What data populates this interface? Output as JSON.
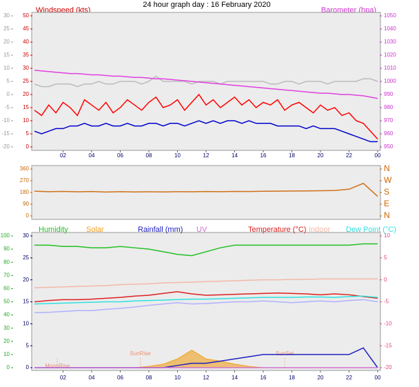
{
  "chart_data": [
    {
      "type": "line",
      "title": "24 hour graph day : 16 February 2020",
      "ylabel": "Windspeed (kts)",
      "y2label": "Barometer (hpa)",
      "xlim": [
        0,
        24
      ],
      "xticks": [
        {
          "value": 2,
          "label": "02"
        },
        {
          "value": 4,
          "label": "04"
        },
        {
          "value": 6,
          "label": "06"
        },
        {
          "value": 8,
          "label": "08"
        },
        10,
        12,
        14,
        16,
        18,
        20,
        22,
        {
          "value": 24,
          "label": "00"
        }
      ],
      "ylim": [
        0,
        50
      ],
      "yticks": [
        0,
        5,
        10,
        15,
        20,
        25,
        30,
        35,
        40,
        45,
        50
      ],
      "y3lim": [
        -20,
        30
      ],
      "y3ticks": [
        -20,
        -15,
        -10,
        -5,
        0,
        5,
        10,
        15,
        20,
        25,
        30
      ],
      "y2lim": [
        950,
        1050
      ],
      "y2ticks": [
        950,
        960,
        970,
        980,
        990,
        1000,
        1010,
        1020,
        1030,
        1040,
        1050
      ],
      "x": [
        0,
        0.5,
        1,
        1.5,
        2,
        2.5,
        3,
        3.5,
        4,
        4.5,
        5,
        5.5,
        6,
        6.5,
        7,
        7.5,
        8,
        8.5,
        9,
        9.5,
        10,
        10.5,
        11,
        11.5,
        12,
        12.5,
        13,
        13.5,
        14,
        14.5,
        15,
        15.5,
        16,
        16.5,
        17,
        17.5,
        18,
        18.5,
        19,
        19.5,
        20,
        20.5,
        21,
        21.5,
        22,
        22.5,
        23,
        23.5,
        24
      ],
      "series": [
        {
          "color": "#bbbbbb",
          "values": [
            24,
            23,
            23,
            24,
            24,
            24,
            23,
            24,
            24,
            25,
            24,
            24,
            25,
            25,
            25,
            24,
            25,
            27,
            25,
            25,
            25,
            25,
            24,
            25,
            25,
            25,
            24,
            25,
            25,
            25,
            25,
            25,
            25,
            24,
            24,
            25,
            25,
            24,
            25,
            25,
            25,
            24,
            25,
            25,
            25,
            25,
            26,
            26,
            25
          ]
        },
        {
          "name": "Barometer (hpa)",
          "color": "#e040e0",
          "axis": "y2",
          "values": [
            1008.5,
            1008,
            1007.5,
            1007,
            1006.5,
            1006,
            1006,
            1005.5,
            1005,
            1005,
            1004.5,
            1004,
            1004,
            1003.5,
            1003,
            1003,
            1002.5,
            1002,
            1002,
            1001.5,
            1001,
            1000.5,
            1000,
            999.5,
            999,
            998.5,
            998,
            997.5,
            997,
            996.5,
            996,
            995.5,
            995,
            994.5,
            994,
            993.5,
            993,
            992.5,
            992,
            991.5,
            991,
            991,
            990.5,
            990,
            990,
            989.5,
            989,
            988,
            987
          ]
        },
        {
          "name": "Windspeed (kts)",
          "color": "#ff0000",
          "values": [
            14,
            12,
            16,
            13,
            17,
            15,
            12,
            18,
            16,
            14,
            17,
            13,
            15,
            18,
            16,
            14,
            17,
            19,
            15,
            16,
            18,
            14,
            17,
            20,
            16,
            18,
            15,
            17,
            19,
            16,
            18,
            15,
            17,
            16,
            18,
            14,
            16,
            17,
            15,
            13,
            16,
            14,
            15,
            12,
            13,
            10,
            9,
            6,
            3
          ]
        },
        {
          "color": "#0000cc",
          "values": [
            6,
            5,
            6,
            7,
            7,
            8,
            8,
            9,
            8,
            8,
            9,
            8,
            8,
            9,
            8,
            8,
            9,
            9,
            8,
            9,
            9,
            8,
            9,
            10,
            9,
            10,
            9,
            10,
            10,
            9,
            10,
            9,
            9,
            9,
            8,
            8,
            8,
            8,
            7,
            8,
            7,
            7,
            7,
            6,
            5,
            4,
            3,
            2,
            2
          ]
        }
      ]
    },
    {
      "type": "line",
      "xlim": [
        0,
        24
      ],
      "ylim": [
        0,
        360
      ],
      "yticks": [
        0,
        90,
        180,
        270,
        360
      ],
      "y2lim": [
        0,
        360
      ],
      "y2ticks": [
        {
          "value": 0,
          "label": "N"
        },
        {
          "value": 90,
          "label": "E"
        },
        {
          "value": 180,
          "label": "S"
        },
        {
          "value": 270,
          "label": "W"
        },
        {
          "value": 360,
          "label": "N"
        }
      ],
      "x": [
        0,
        1,
        2,
        3,
        4,
        5,
        6,
        7,
        8,
        9,
        10,
        11,
        12,
        13,
        14,
        15,
        16,
        17,
        18,
        19,
        20,
        21,
        22,
        23,
        24
      ],
      "series": [
        {
          "color": "#d07018",
          "values": [
            190,
            186,
            188,
            185,
            187,
            183,
            186,
            184,
            185,
            184,
            186,
            185,
            187,
            186,
            188,
            187,
            189,
            190,
            191,
            192,
            193,
            195,
            205,
            250,
            150
          ]
        }
      ]
    },
    {
      "type": "line",
      "xlim": [
        0,
        24
      ],
      "xticks": [
        {
          "value": 2,
          "label": "02"
        },
        {
          "value": 4,
          "label": "04"
        },
        {
          "value": 6,
          "label": "06"
        },
        {
          "value": 8,
          "label": "08"
        },
        10,
        12,
        14,
        16,
        18,
        20,
        22,
        {
          "value": 24,
          "label": "00"
        }
      ],
      "ylim": [
        0,
        30
      ],
      "yticks": [
        0,
        5,
        10,
        15,
        20,
        25,
        30
      ],
      "y3lim": [
        0,
        100
      ],
      "y3ticks": [
        0,
        10,
        20,
        30,
        40,
        50,
        60,
        70,
        80,
        90,
        100
      ],
      "y2lim": [
        -20,
        10
      ],
      "y2ticks": [
        -20,
        -15,
        -10,
        -5,
        0,
        5,
        10
      ],
      "x": [
        0,
        1,
        2,
        3,
        4,
        5,
        6,
        7,
        8,
        9,
        10,
        11,
        12,
        13,
        14,
        15,
        16,
        17,
        18,
        19,
        20,
        21,
        22,
        23,
        24
      ],
      "annotations": [
        {
          "text": "MoonRise",
          "x": 1.6
        },
        {
          "text": "SunRise",
          "x": 7.4
        },
        {
          "text": "SunSet",
          "x": 17.5
        }
      ],
      "series": [
        {
          "name": "Humidity",
          "color": "#22c022",
          "axis": "y3",
          "values": [
            93,
            93,
            92,
            92,
            91,
            91,
            92,
            91,
            90,
            88,
            86,
            85,
            88,
            91,
            93,
            93,
            93,
            93,
            93,
            93,
            93,
            93,
            93,
            94,
            94
          ]
        },
        {
          "name": "Solar",
          "color": "#f0a020",
          "area": true,
          "values": [
            0,
            0,
            0,
            0,
            0,
            0,
            0,
            0,
            0.3,
            0.8,
            2,
            4,
            2,
            1.5,
            0.8,
            0.3,
            0,
            0,
            0,
            0,
            0,
            0,
            0,
            0,
            0
          ]
        },
        {
          "name": "Rainfall (mm)",
          "color": "#2020c0",
          "values": [
            0,
            0,
            0,
            0,
            0,
            0,
            0,
            0,
            0,
            0,
            0.5,
            1,
            1,
            1.5,
            2,
            2.5,
            3,
            3,
            3,
            3,
            3,
            3,
            3,
            4.5,
            0
          ]
        },
        {
          "name": "UV",
          "color": "#d070d0",
          "values": [
            0,
            0,
            0,
            0,
            0,
            0,
            0,
            0,
            0,
            0,
            0,
            0,
            0,
            0,
            0,
            0,
            0,
            0,
            0,
            0,
            0,
            0,
            0,
            0,
            0
          ]
        },
        {
          "name": "Temperature (°C)",
          "color": "#dd2020",
          "values": [
            15,
            15.3,
            15.5,
            15.5,
            15.6,
            15.8,
            16,
            16.3,
            16.5,
            16.9,
            17.3,
            16.8,
            16.5,
            16.6,
            16.7,
            16.8,
            16.9,
            17,
            16.9,
            16.8,
            16.6,
            16.8,
            16.6,
            16.2,
            15.8
          ]
        },
        {
          "name": "Indoor",
          "color": "#f4b8a8",
          "values": [
            18.2,
            18.3,
            18.4,
            18.5,
            18.6,
            18.7,
            18.9,
            19,
            19.1,
            19.3,
            19.4,
            19.5,
            19.6,
            19.7,
            19.8,
            19.9,
            20,
            20,
            20.1,
            20.1,
            20.2,
            20.2,
            20.2,
            20.2,
            20.2
          ]
        },
        {
          "name": "Dew Point (°C)",
          "color": "#30e0e0",
          "values": [
            14.5,
            14.6,
            14.7,
            14.8,
            14.9,
            15,
            15,
            15.2,
            15.3,
            15.4,
            15.5,
            15.6,
            15.6,
            15.7,
            15.8,
            15.9,
            16,
            16,
            16,
            16.1,
            16.1,
            16,
            16.2,
            16.3,
            16
          ]
        },
        {
          "color": "#b0b0ff",
          "values": [
            12.5,
            12.6,
            12.8,
            13,
            13,
            13.3,
            13.5,
            13.8,
            14.2,
            14.5,
            14.8,
            14.5,
            14.6,
            14.8,
            15,
            15,
            15.2,
            15,
            14.8,
            15,
            15.2,
            15,
            15.3,
            15.5,
            15
          ]
        }
      ]
    }
  ]
}
